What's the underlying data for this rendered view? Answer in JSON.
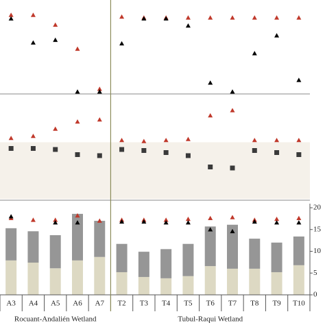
{
  "chart_data": [
    {
      "type": "scatter",
      "ylim": [
        0,
        100
      ],
      "series": [
        {
          "name": null,
          "color": "#c0392b",
          "marker": "triangle",
          "values": [
            87,
            87,
            76,
            49,
            4,
            85,
            84,
            84,
            84,
            84,
            84,
            84,
            84,
            84
          ]
        },
        {
          "name": null,
          "color": "#000000",
          "marker": "triangle",
          "values": [
            83,
            56,
            59,
            1,
            1,
            55,
            83,
            83,
            75,
            11,
            1,
            44,
            64,
            14
          ]
        }
      ]
    },
    {
      "type": "scatter",
      "ylim": [
        0,
        100
      ],
      "band": [
        0,
        55
      ],
      "band_color": "#f5f1ea",
      "series": [
        {
          "name": null,
          "color": "#c0392b",
          "marker": "triangle",
          "values": [
            59,
            61,
            68,
            75,
            77,
            57,
            56,
            57,
            58,
            81,
            86,
            57,
            57,
            57
          ]
        },
        {
          "name": null,
          "color": "#3a3a3a",
          "marker": "square",
          "values": [
            49,
            49,
            48,
            43,
            42,
            48,
            47,
            45,
            42,
            31,
            30,
            47,
            45,
            43
          ]
        }
      ]
    },
    {
      "type": "bar",
      "ylim": [
        0,
        20
      ],
      "yticks": [
        0,
        5,
        10,
        15,
        20
      ],
      "categories": [
        "A3",
        "A4",
        "A5",
        "A6",
        "A7",
        "T2",
        "T3",
        "T4",
        "T5",
        "T6",
        "T7",
        "T8",
        "T9",
        "T10"
      ],
      "groups": [
        {
          "label": "Rocuant-Andalién Wetland",
          "size": 5
        },
        {
          "label": "Tubul-Raqui Wetland",
          "size": 9
        }
      ],
      "series": [
        {
          "name": null,
          "color": "#ddd9c3",
          "values": [
            7.9,
            7.4,
            6.1,
            7.9,
            8.7,
            5.2,
            4.1,
            3.8,
            4.3,
            6.6,
            6.0,
            6.0,
            5.2,
            6.8
          ]
        },
        {
          "name": null,
          "color": "#969696",
          "values": [
            7.4,
            7.2,
            7.6,
            10.7,
            8.3,
            6.5,
            5.8,
            6.7,
            7.4,
            9.1,
            10.1,
            6.9,
            6.8,
            6.6
          ]
        }
      ],
      "markers": [
        {
          "name": null,
          "color": "#c0392b",
          "marker": "triangle",
          "values": [
            17.6,
            17.2,
            17.2,
            18.2,
            17.0,
            17.2,
            17.2,
            17.2,
            17.4,
            17.6,
            17.8,
            17.2,
            17.4,
            17.6
          ]
        },
        {
          "name": null,
          "color": "#000000",
          "marker": "triangle",
          "values": [
            18.0,
            null,
            16.6,
            16.6,
            null,
            16.8,
            16.8,
            16.6,
            16.6,
            15.0,
            14.6,
            16.8,
            16.6,
            16.6
          ]
        }
      ]
    }
  ]
}
